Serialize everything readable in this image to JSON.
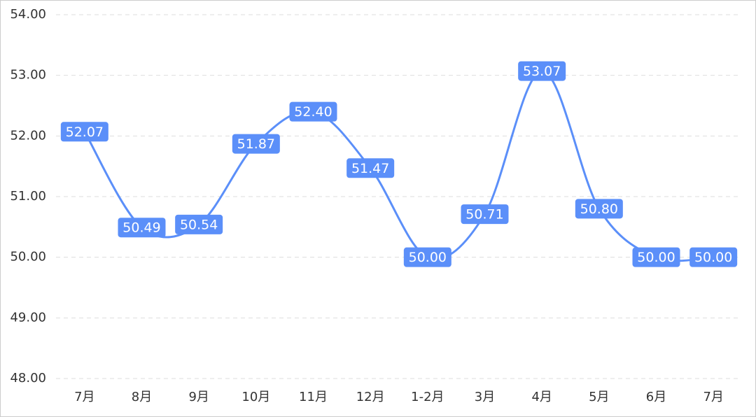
{
  "chart_data": {
    "type": "line",
    "categories": [
      "7月",
      "8月",
      "9月",
      "10月",
      "11月",
      "12月",
      "1-2月",
      "3月",
      "4月",
      "5月",
      "6月",
      "7月"
    ],
    "values": [
      52.07,
      50.49,
      50.54,
      51.87,
      52.4,
      51.47,
      50.0,
      50.71,
      53.07,
      50.8,
      50.0,
      50.0
    ],
    "value_labels": [
      "52.07",
      "50.49",
      "50.54",
      "51.87",
      "52.40",
      "51.47",
      "50.00",
      "50.71",
      "53.07",
      "50.80",
      "50.00",
      "50.00"
    ],
    "color": "#5b8ff9",
    "ylim": [
      48,
      54
    ],
    "yticks": [
      {
        "value": 48,
        "label": "48.00"
      },
      {
        "value": 49,
        "label": "49.00"
      },
      {
        "value": 50,
        "label": "50.00"
      },
      {
        "value": 51,
        "label": "51.00"
      },
      {
        "value": 52,
        "label": "52.00"
      },
      {
        "value": 53,
        "label": "53.00"
      },
      {
        "value": 54,
        "label": "54.00"
      }
    ],
    "grid": true,
    "smooth": true
  }
}
